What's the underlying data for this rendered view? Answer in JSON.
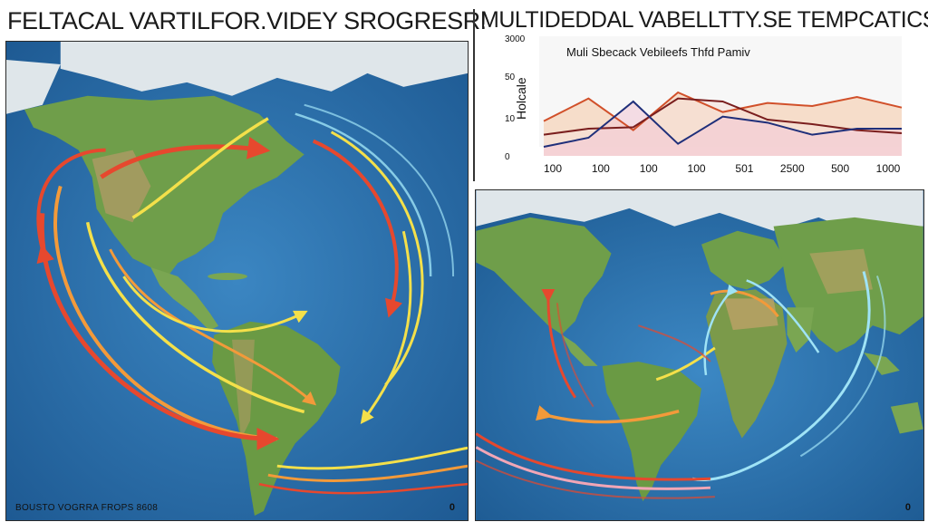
{
  "left_panel": {
    "title": "FELTACAL VARTILFOR.VIDEY SROGRESR!",
    "footer": "BOUSTO VOGRRA FROPS 8608",
    "badge": "0"
  },
  "right_panel": {
    "title": "MULTIDEDDAL VABELLTTY.SE TEMPCATICS",
    "badge": "0"
  },
  "colors": {
    "ocean": "#2a6ea8",
    "land": "#6f9e4a",
    "ice": "#dfe6ea",
    "arrow_red": "#e6482e",
    "arrow_orange": "#f39a3a",
    "arrow_yellow": "#f4e04a",
    "arrow_cyan": "#9fe3f6"
  },
  "chart_data": {
    "type": "line",
    "title": "Muli Sbecack Vebileefs Thfd Pamiv",
    "ylabel": "Holcale",
    "xlabel": "",
    "x_tick_labels": [
      "100",
      "100",
      "100",
      "100",
      "501",
      "2500",
      "500",
      "1000"
    ],
    "y_tick_labels": [
      "3000",
      "50",
      "10",
      "0"
    ],
    "ylim": [
      0,
      3000
    ],
    "series": [
      {
        "color": "#d1502a",
        "fill": "#f6c9a6",
        "values": [
          1150,
          1900,
          850,
          2100,
          1450,
          1750,
          1650,
          1950,
          1600
        ]
      },
      {
        "color": "#7a1e1e",
        "fill": "#f6e0d8",
        "values": [
          700,
          900,
          950,
          1900,
          1800,
          1200,
          1050,
          850,
          750
        ]
      },
      {
        "color": "#1f2f7a",
        "fill": "#f2c6d6",
        "values": [
          300,
          600,
          1800,
          400,
          1300,
          1100,
          700,
          900,
          900
        ]
      }
    ]
  }
}
